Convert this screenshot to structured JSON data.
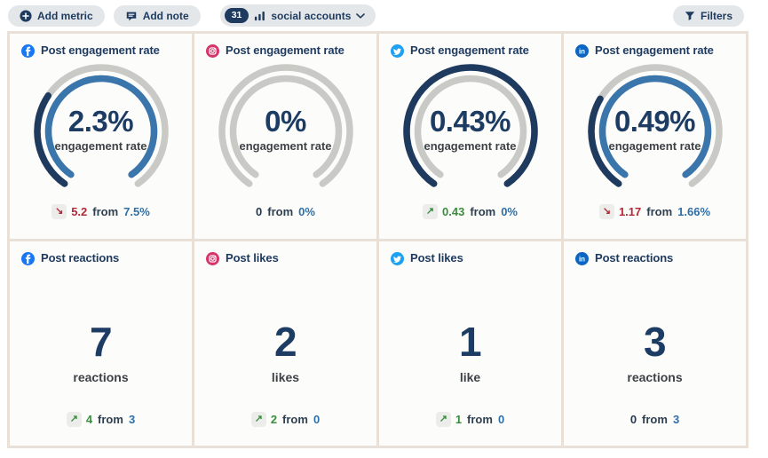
{
  "toolbar": {
    "add_metric_label": "Add metric",
    "add_note_label": "Add note",
    "accounts_count": "31",
    "accounts_label": "social accounts",
    "filters_label": "Filters"
  },
  "colors": {
    "navy": "#1e3a5f",
    "gauge_current_arc": "#1e3a5f",
    "gauge_previous_arc": "#3a76ab",
    "gauge_track": "#c9c9c6",
    "delta_up_green": "#388e3c",
    "delta_down_red": "#b02a37",
    "previous_value_blue": "#2e6fa7",
    "panel_beige": "#e9e1d7",
    "facebook": "#1877F2",
    "instagram": "#d6356c",
    "twitter": "#1DA1F2",
    "linkedin": "#0A66C2"
  },
  "cards": [
    {
      "platform": "facebook",
      "title": "Post engagement rate",
      "type": "gauge",
      "value": "2.3%",
      "value_label": "engagement rate",
      "current": 2.3,
      "previous": 7.5,
      "delta": {
        "direction": "down",
        "amount": "5.2",
        "from_word": "from",
        "previous": "7.5%"
      }
    },
    {
      "platform": "instagram",
      "title": "Post engagement rate",
      "type": "gauge",
      "value": "0%",
      "value_label": "engagement rate",
      "current": 0,
      "previous": 0,
      "delta": {
        "direction": "none",
        "amount": "0",
        "from_word": "from",
        "previous": "0%"
      }
    },
    {
      "platform": "twitter",
      "title": "Post engagement rate",
      "type": "gauge",
      "value": "0.43%",
      "value_label": "engagement rate",
      "current": 0.43,
      "previous": 0,
      "delta": {
        "direction": "up",
        "amount": "0.43",
        "from_word": "from",
        "previous": "0%"
      }
    },
    {
      "platform": "linkedin",
      "title": "Post engagement rate",
      "type": "gauge",
      "value": "0.49%",
      "value_label": "engagement rate",
      "current": 0.49,
      "previous": 1.66,
      "delta": {
        "direction": "down",
        "amount": "1.17",
        "from_word": "from",
        "previous": "1.66%"
      }
    },
    {
      "platform": "facebook",
      "title": "Post reactions",
      "type": "number",
      "value": "7",
      "value_label": "reactions",
      "delta": {
        "direction": "up",
        "amount": "4",
        "from_word": "from",
        "previous": "3"
      }
    },
    {
      "platform": "instagram",
      "title": "Post likes",
      "type": "number",
      "value": "2",
      "value_label": "likes",
      "delta": {
        "direction": "up",
        "amount": "2",
        "from_word": "from",
        "previous": "0"
      }
    },
    {
      "platform": "twitter",
      "title": "Post likes",
      "type": "number",
      "value": "1",
      "value_label": "like",
      "delta": {
        "direction": "up",
        "amount": "1",
        "from_word": "from",
        "previous": "0"
      }
    },
    {
      "platform": "linkedin",
      "title": "Post reactions",
      "type": "number",
      "value": "3",
      "value_label": "reactions",
      "delta": {
        "direction": "none",
        "amount": "0",
        "from_word": "from",
        "previous": "3"
      }
    }
  ]
}
